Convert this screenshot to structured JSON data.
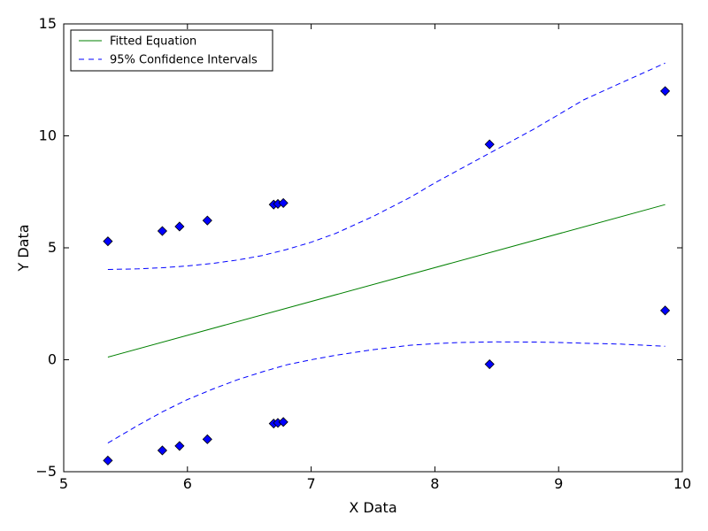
{
  "chart_data": {
    "type": "scatter",
    "title": "",
    "xlabel": "X Data",
    "ylabel": "Y Data",
    "xlim": [
      5,
      10
    ],
    "ylim": [
      -5,
      15
    ],
    "xticks": [
      5,
      6,
      7,
      8,
      9,
      10
    ],
    "yticks": [
      -5,
      0,
      5,
      10,
      15
    ],
    "xtick_labels": [
      "5",
      "6",
      "7",
      "8",
      "9",
      "10"
    ],
    "ytick_labels": [
      "−5",
      "0",
      "5",
      "10",
      "15"
    ],
    "grid": false,
    "legend": {
      "placement": "top-left",
      "entries": [
        {
          "label": "Fitted Equation",
          "color": "#008000",
          "style": "solid"
        },
        {
          "label": "95% Confidence Intervals",
          "color": "#0000ff",
          "style": "dashed"
        }
      ]
    },
    "points": {
      "color": "#0000ff",
      "marker": "diamond",
      "x": [
        5.357,
        5.797,
        5.936,
        6.161,
        6.697,
        6.731,
        6.775,
        8.442,
        9.861,
        5.357,
        5.797,
        5.936,
        6.161,
        6.697,
        6.731,
        6.775,
        8.442,
        9.861
      ],
      "y": [
        5.29,
        5.75,
        5.95,
        6.22,
        6.93,
        6.96,
        7.0,
        9.62,
        12.0,
        -4.5,
        -4.05,
        -3.85,
        -3.55,
        -2.85,
        -2.82,
        -2.78,
        -0.2,
        2.2
      ]
    },
    "fit": {
      "color": "#008000",
      "x": [
        5.357,
        9.861
      ],
      "y": [
        0.12,
        6.93
      ]
    },
    "ci_upper": {
      "color": "#0000ff",
      "x": [
        5.357,
        5.6,
        5.8,
        6.0,
        6.2,
        6.4,
        6.6,
        6.8,
        7.0,
        7.2,
        7.5,
        7.8,
        8.0,
        8.2,
        8.5,
        8.8,
        9.0,
        9.2,
        9.5,
        9.861
      ],
      "y": [
        4.03,
        4.06,
        4.11,
        4.19,
        4.3,
        4.45,
        4.65,
        4.92,
        5.25,
        5.65,
        6.4,
        7.25,
        7.9,
        8.5,
        9.4,
        10.3,
        10.95,
        11.6,
        12.35,
        13.25
      ]
    },
    "ci_lower": {
      "color": "#0000ff",
      "x": [
        5.357,
        5.6,
        5.8,
        6.0,
        6.2,
        6.4,
        6.6,
        6.8,
        7.0,
        7.2,
        7.5,
        7.8,
        8.0,
        8.2,
        8.5,
        8.8,
        9.0,
        9.2,
        9.5,
        9.861
      ],
      "y": [
        -3.72,
        -2.93,
        -2.32,
        -1.78,
        -1.32,
        -0.9,
        -0.55,
        -0.23,
        0.0,
        0.2,
        0.45,
        0.65,
        0.72,
        0.77,
        0.8,
        0.79,
        0.77,
        0.74,
        0.7,
        0.6
      ]
    }
  }
}
